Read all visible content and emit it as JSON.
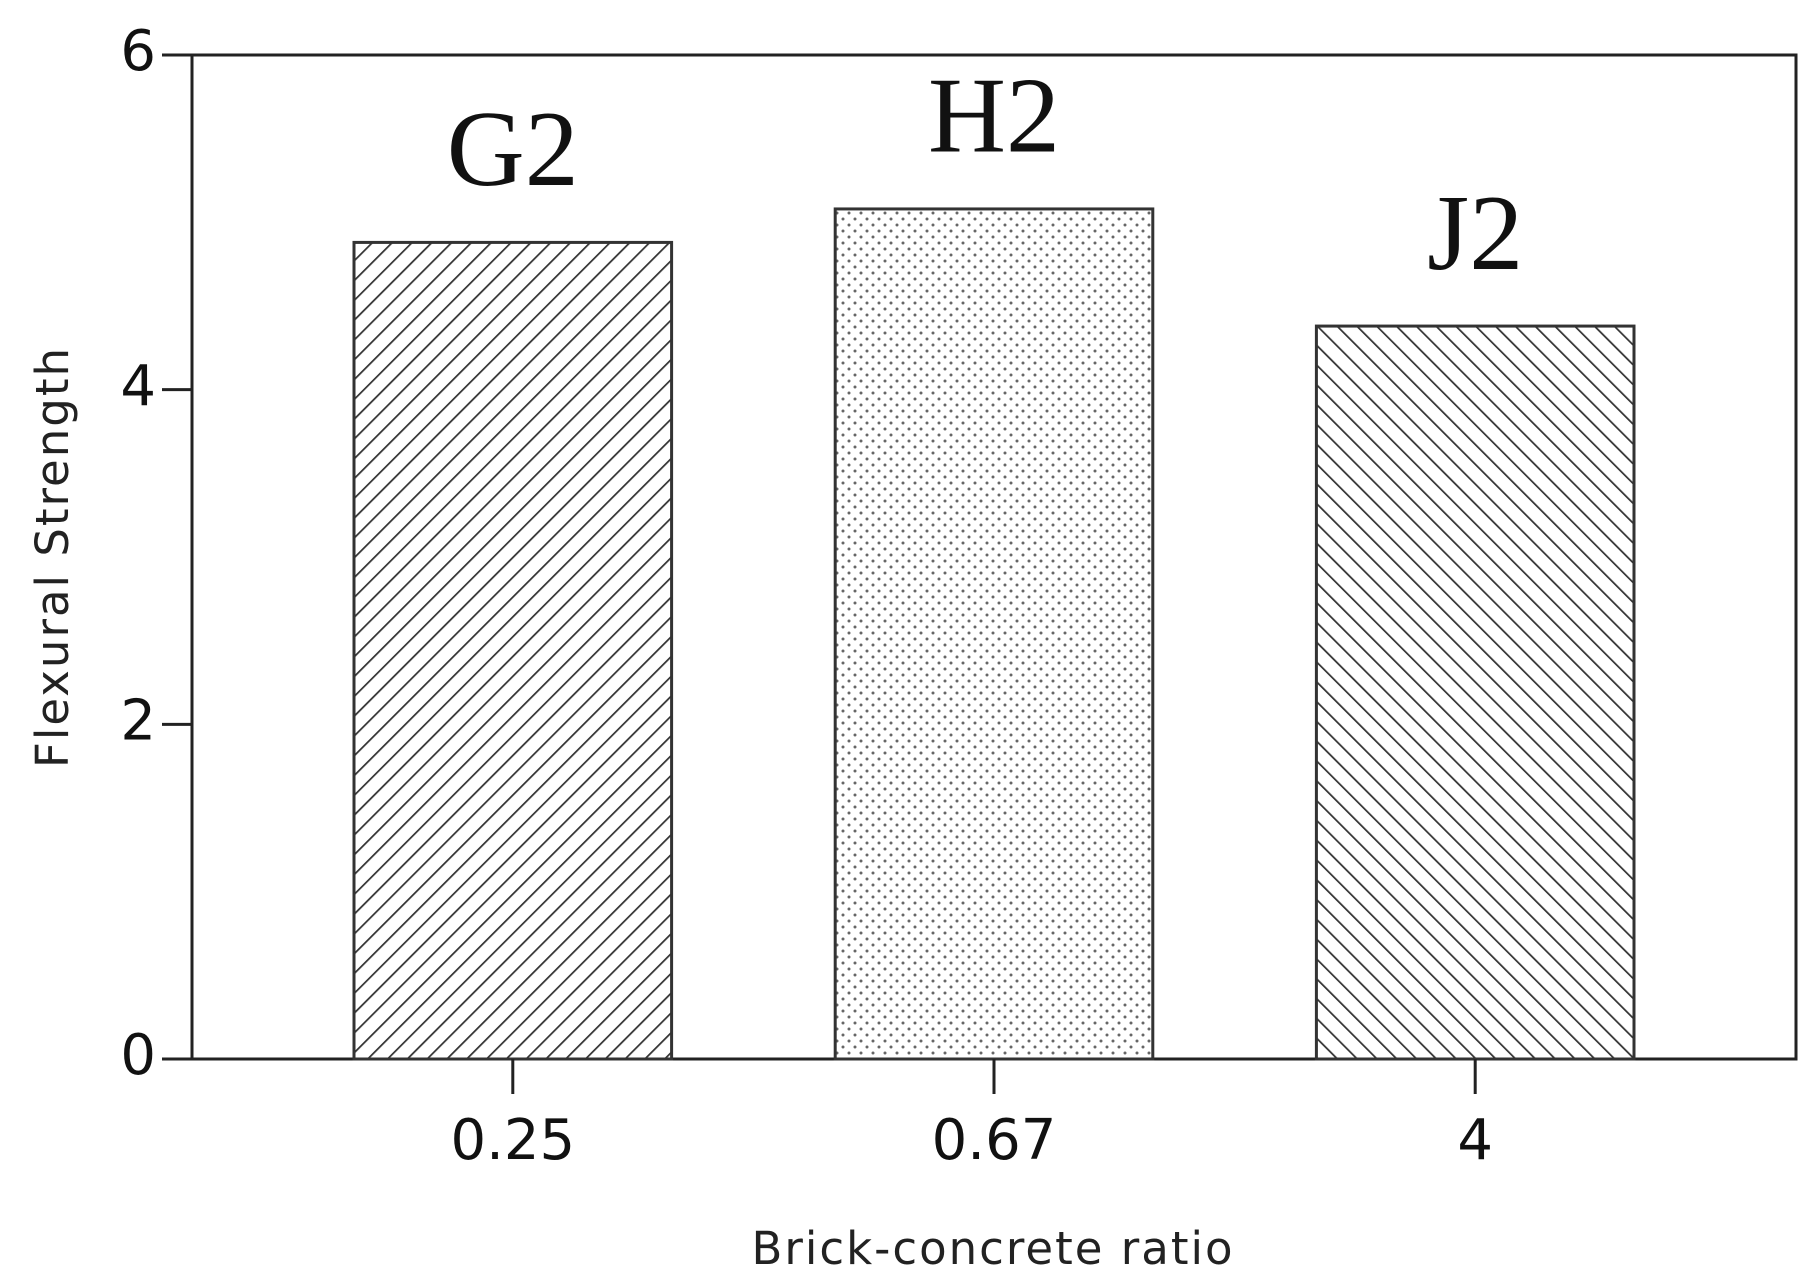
{
  "chart_data": {
    "type": "bar",
    "x_label": "Brick-concrete ratio",
    "y_label": "Flexural Strength",
    "categories": [
      "0.25",
      "0.67",
      "4"
    ],
    "values": [
      4.88,
      5.08,
      4.38
    ],
    "bar_labels": [
      "G2",
      "H2",
      "J2"
    ],
    "ylim": [
      0,
      6
    ],
    "yticks": [
      0,
      2,
      4,
      6
    ],
    "grid": false
  }
}
